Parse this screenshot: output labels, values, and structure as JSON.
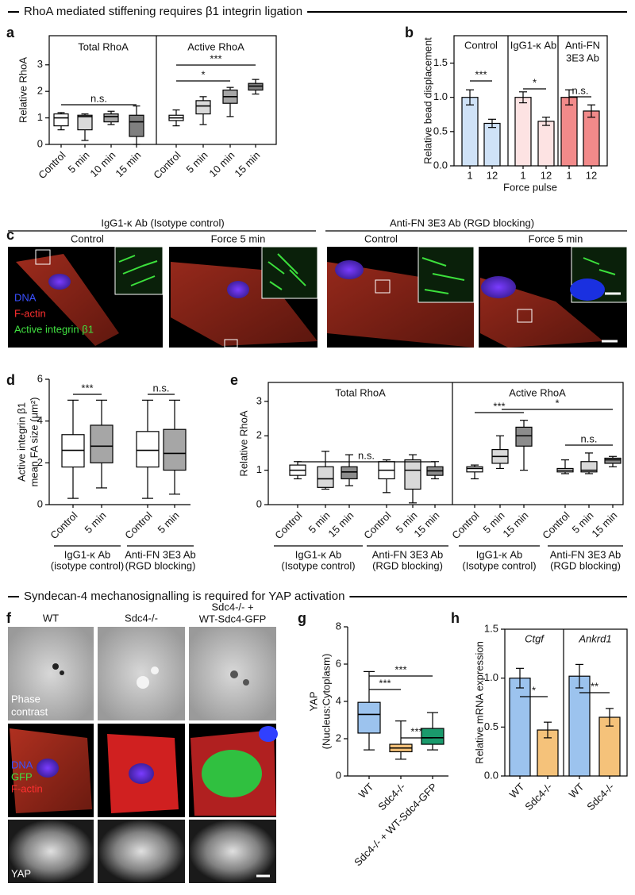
{
  "headings": [
    "RhoA mediated stiffening requires β1 integrin ligation",
    "Syndecan-4 mechanosignalling is required for YAP activation"
  ],
  "panel_letters": [
    "a",
    "b",
    "c",
    "d",
    "e",
    "f",
    "g",
    "h"
  ],
  "panel_c": {
    "conditions": [
      "IgG1-κ Ab (Isotype control)",
      "Anti-FN 3E3 Ab (RGD blocking)"
    ],
    "columns": [
      "Control",
      "Force 5 min",
      "Control",
      "Force 5 min"
    ],
    "legend": [
      "DNA",
      "F-actin",
      "Active integrin β1"
    ]
  },
  "panel_f": {
    "columns": [
      [
        "WT"
      ],
      [
        "Sdc4-/-"
      ],
      [
        "Sdc4-/- +",
        "WT-Sdc4-GFP"
      ]
    ],
    "row_labels": [
      [
        "Phase",
        "contrast"
      ],
      [
        "DNA",
        "GFP",
        "F-actin"
      ],
      [
        "YAP"
      ]
    ]
  },
  "chart_data": [
    {
      "type": "box",
      "ylabel": [
        "Relative RhoA"
      ],
      "groups": [
        [
          "Total RhoA"
        ],
        [
          "Active RhoA"
        ]
      ],
      "categories": [
        "Control",
        "5 min",
        "10 min",
        "15 min",
        "Control",
        "5 min",
        "10 min",
        "15 min"
      ],
      "boxes": [
        {
          "min": 0.55,
          "q1": 0.7,
          "median": 1.0,
          "q3": 1.15,
          "max": 1.2
        },
        {
          "min": 0.15,
          "q1": 0.55,
          "median": 1.05,
          "q3": 1.1,
          "max": 1.15
        },
        {
          "min": 0.75,
          "q1": 0.85,
          "median": 1.05,
          "q3": 1.15,
          "max": 1.25
        },
        {
          "min": 0.0,
          "q1": 0.3,
          "median": 0.85,
          "q3": 1.1,
          "max": 1.45
        },
        {
          "min": 0.7,
          "q1": 0.9,
          "median": 1.0,
          "q3": 1.1,
          "max": 1.3
        },
        {
          "min": 0.75,
          "q1": 1.15,
          "median": 1.45,
          "q3": 1.65,
          "max": 1.8
        },
        {
          "min": 1.05,
          "q1": 1.55,
          "median": 1.8,
          "q3": 2.05,
          "max": 2.15
        },
        {
          "min": 1.9,
          "q1": 2.05,
          "median": 2.2,
          "q3": 2.3,
          "max": 2.45
        }
      ],
      "colors": [
        "#ffffff",
        "#d9d9d9",
        "#a6a6a6",
        "#7f7f7f",
        "#ffffff",
        "#d9d9d9",
        "#a6a6a6",
        "#7f7f7f"
      ],
      "annotations": [
        "n.s.",
        "***",
        "*"
      ],
      "ylim": [
        0,
        4.1
      ],
      "yticks": [
        0,
        1,
        2,
        3
      ]
    },
    {
      "type": "bar",
      "ylabel": [
        "Relative bead displacement"
      ],
      "xlabel": "Force pulse",
      "groups": [
        [
          "Control"
        ],
        [
          "IgG1-κ Ab"
        ],
        [
          "Anti-FN",
          "3E3 Ab"
        ]
      ],
      "categories": [
        "1",
        "12",
        "1",
        "12",
        "1",
        "12"
      ],
      "values": [
        1.0,
        0.62,
        1.0,
        0.65,
        1.0,
        0.8
      ],
      "errors": [
        0.11,
        0.06,
        0.08,
        0.06,
        0.11,
        0.09
      ],
      "colors": [
        "#cfe2f7",
        "#cfe2f7",
        "#fde3e3",
        "#fde3e3",
        "#f28a8a",
        "#f28a8a"
      ],
      "annotations": [
        "***",
        "*",
        "n.s."
      ],
      "ylim": [
        0,
        1.9
      ],
      "yticks": [
        {
          "value": 0,
          "label": "0.0"
        },
        {
          "value": 0.5,
          "label": "0.5"
        },
        {
          "value": 1,
          "label": "1.0"
        },
        {
          "value": 1.5,
          "label": "1.5"
        }
      ]
    },
    {
      "type": "box",
      "ylabel": [
        "Active integrin β1",
        "mean FA size (μm²)"
      ],
      "categories": [
        "Control",
        "5 min",
        "Control",
        "5 min"
      ],
      "group_labels": [
        [
          "IgG1-κ Ab",
          "(isotype control)"
        ],
        [
          "Anti-FN 3E3 Ab",
          "(RGD blocking)"
        ]
      ],
      "boxes": [
        {
          "min": 0.3,
          "q1": 1.8,
          "median": 2.6,
          "q3": 3.35,
          "max": 5.0
        },
        {
          "min": 0.8,
          "q1": 2.0,
          "median": 2.8,
          "q3": 3.8,
          "max": 5.0
        },
        {
          "min": 0.3,
          "q1": 1.8,
          "median": 2.6,
          "q3": 3.5,
          "max": 5.0
        },
        {
          "min": 0.5,
          "q1": 1.65,
          "median": 2.45,
          "q3": 3.6,
          "max": 5.0
        }
      ],
      "colors": [
        "#ffffff",
        "#a6a6a6",
        "#ffffff",
        "#a6a6a6"
      ],
      "annotations": [
        "***",
        "n.s."
      ],
      "ylim": [
        0,
        6
      ],
      "yticks": [
        0,
        2,
        4,
        6
      ]
    },
    {
      "type": "box",
      "ylabel": [
        "Relative RhoA"
      ],
      "groups": [
        [
          "Total RhoA"
        ],
        [
          "Active RhoA"
        ]
      ],
      "categories": [
        "Control",
        "5 min",
        "15 min",
        "Control",
        "5 min",
        "15 min",
        "Control",
        "5 min",
        "15 min",
        "Control",
        "5 min",
        "15 min"
      ],
      "group_labels": [
        [
          "IgG1-κ Ab",
          "(Isotype control)"
        ],
        [
          "Anti-FN 3E3 Ab",
          "(RGD blocking)"
        ],
        [
          "IgG1-κ Ab",
          "(Isotype control)"
        ],
        [
          "Anti-FN 3E3 Ab",
          "(RGD blocking)"
        ]
      ],
      "boxes": [
        {
          "min": 0.75,
          "q1": 0.85,
          "median": 1.0,
          "q3": 1.15,
          "max": 1.25
        },
        {
          "min": 0.45,
          "q1": 0.5,
          "median": 0.75,
          "q3": 1.1,
          "max": 1.55
        },
        {
          "min": 0.55,
          "q1": 0.75,
          "median": 0.95,
          "q3": 1.1,
          "max": 1.45
        },
        {
          "min": 0.35,
          "q1": 0.75,
          "median": 1.0,
          "q3": 1.25,
          "max": 1.3
        },
        {
          "min": 0.05,
          "q1": 0.45,
          "median": 1.0,
          "q3": 1.3,
          "max": 1.45
        },
        {
          "min": 0.75,
          "q1": 0.85,
          "median": 0.98,
          "q3": 1.1,
          "max": 1.25
        },
        {
          "min": 0.75,
          "q1": 0.95,
          "median": 1.05,
          "q3": 1.1,
          "max": 1.15
        },
        {
          "min": 1.05,
          "q1": 1.2,
          "median": 1.4,
          "q3": 1.6,
          "max": 2.0
        },
        {
          "min": 1.0,
          "q1": 1.7,
          "median": 2.0,
          "q3": 2.25,
          "max": 2.45
        },
        {
          "min": 0.9,
          "q1": 0.95,
          "median": 1.0,
          "q3": 1.05,
          "max": 1.3
        },
        {
          "min": 0.9,
          "q1": 0.95,
          "median": 1.0,
          "q3": 1.25,
          "max": 1.5
        },
        {
          "min": 1.1,
          "q1": 1.2,
          "median": 1.3,
          "q3": 1.35,
          "max": 1.4
        }
      ],
      "colors": [
        "#ffffff",
        "#d9d9d9",
        "#8c8c8c",
        "#ffffff",
        "#d9d9d9",
        "#8c8c8c",
        "#ffffff",
        "#d9d9d9",
        "#8c8c8c",
        "#ffffff",
        "#d9d9d9",
        "#8c8c8c"
      ],
      "annotations": [
        "n.s.",
        "***",
        "*",
        "n.s."
      ],
      "ylim": [
        0,
        3.55
      ],
      "yticks": [
        0,
        1,
        2,
        3
      ]
    },
    {
      "type": "box",
      "ylabel": [
        "YAP",
        "(Nucleus:Cytoplasm)"
      ],
      "categories": [
        "WT",
        "Sdc4-/-",
        "Sdc4-/- + WT-Sdc4-GFP"
      ],
      "boxes": [
        {
          "min": 1.4,
          "q1": 2.3,
          "median": 3.3,
          "q3": 3.95,
          "max": 5.6
        },
        {
          "min": 0.9,
          "q1": 1.3,
          "median": 1.5,
          "q3": 1.7,
          "max": 2.95
        },
        {
          "min": 1.4,
          "q1": 1.7,
          "median": 2.05,
          "q3": 2.55,
          "max": 3.4
        }
      ],
      "colors": [
        "#9cc3ee",
        "#f5c27a",
        "#1a9a6c"
      ],
      "annotations": [
        "***",
        "***",
        "***"
      ],
      "ylim": [
        0,
        8
      ],
      "yticks": [
        0,
        2,
        4,
        6,
        8
      ]
    },
    {
      "type": "bar",
      "ylabel": [
        "Relative mRNA expression"
      ],
      "groups": [
        [
          "Ctgf"
        ],
        [
          "Ankrd1"
        ]
      ],
      "categories": [
        "WT",
        "Sdc4-/-",
        "WT",
        "Sdc4-/-"
      ],
      "values": [
        1.0,
        0.47,
        1.02,
        0.6
      ],
      "errors": [
        0.1,
        0.08,
        0.12,
        0.09
      ],
      "colors": [
        "#9cc3ee",
        "#f5c27a",
        "#9cc3ee",
        "#f5c27a"
      ],
      "annotations": [
        "*",
        "**"
      ],
      "ylim": [
        0,
        1.5
      ],
      "yticks": [
        {
          "value": 0,
          "label": "0.0"
        },
        {
          "value": 0.5,
          "label": "0.5"
        },
        {
          "value": 1,
          "label": "1.0"
        },
        {
          "value": 1.5,
          "label": "1.5"
        }
      ]
    }
  ]
}
